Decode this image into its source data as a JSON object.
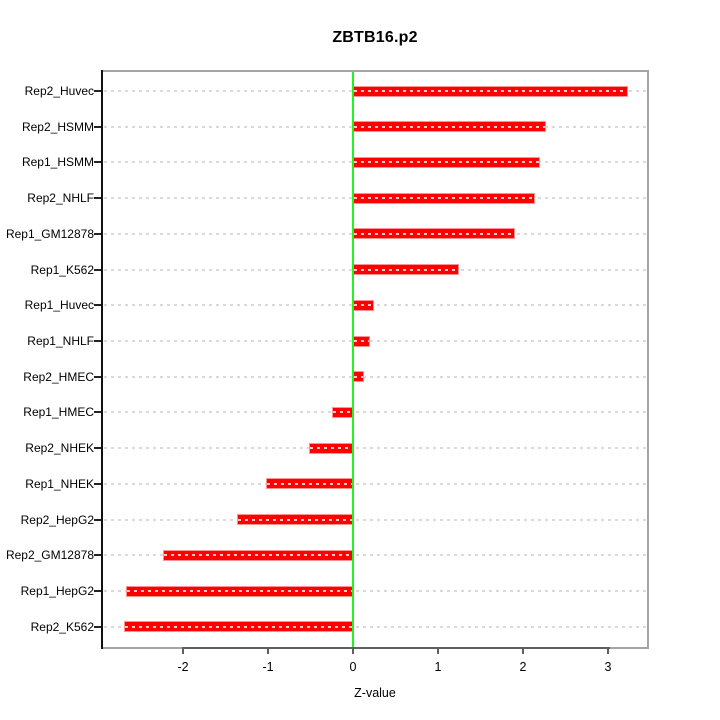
{
  "chart_data": {
    "type": "bar",
    "orientation": "horizontal",
    "title": "ZBTB16.p2",
    "xlabel": "Z-value",
    "ylabel": "",
    "categories": [
      "Rep2_Huvec",
      "Rep2_HSMM",
      "Rep1_HSMM",
      "Rep2_NHLF",
      "Rep1_GM12878",
      "Rep1_K562",
      "Rep1_Huvec",
      "Rep1_NHLF",
      "Rep2_HMEC",
      "Rep1_HMEC",
      "Rep2_NHEK",
      "Rep1_NHEK",
      "Rep2_HepG2",
      "Rep2_GM12878",
      "Rep1_HepG2",
      "Rep2_K562"
    ],
    "values": [
      3.23,
      2.27,
      2.2,
      2.14,
      1.9,
      1.25,
      0.25,
      0.2,
      0.13,
      -0.25,
      -0.52,
      -1.02,
      -1.37,
      -2.23,
      -2.67,
      -2.7
    ],
    "x_ticks": [
      -2,
      -1,
      0,
      1,
      2,
      3
    ],
    "xlim": [
      -2.94,
      3.46
    ],
    "grid": "dotted-horizontal-per-row",
    "legend_position": "none",
    "colors": {
      "bar": "#ff0000",
      "bar_border": "#ff9393",
      "zero_line": "#21f321",
      "gridline": "#dadada",
      "y_axis": "#111111",
      "x_axis": "#5f5f5f",
      "box": "#a4a4a4",
      "text": "#000000",
      "background": "#ffffff"
    }
  }
}
